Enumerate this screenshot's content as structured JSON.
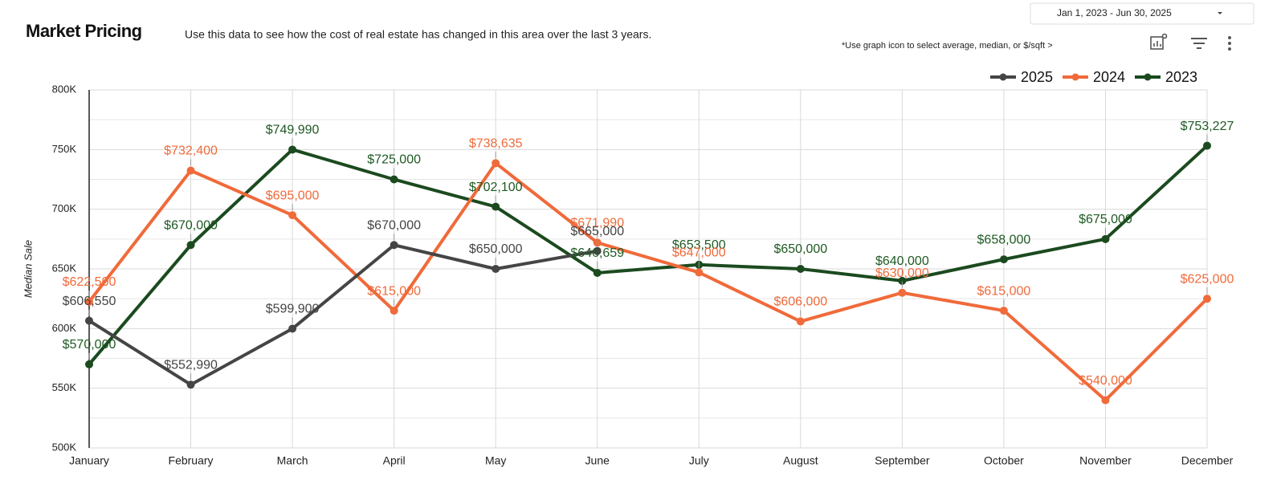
{
  "chart_data": {
    "type": "line",
    "title": "Market Pricing",
    "subtitle": "Use this data to see how the cost of real estate has changed in this area over the last 3 years.",
    "note": "*Use graph icon to  select average, median, or $/sqft >",
    "date_range": "Jan 1, 2023 - Jun 30, 2025",
    "y_label": "Median Sale",
    "categories": [
      "January",
      "February",
      "March",
      "April",
      "May",
      "June",
      "July",
      "August",
      "September",
      "October",
      "November",
      "December"
    ],
    "ylim": [
      500000,
      800000
    ],
    "yticks": [
      {
        "value": 500000,
        "label": "500K"
      },
      {
        "value": 550000,
        "label": "550K"
      },
      {
        "value": 600000,
        "label": "600K"
      },
      {
        "value": 650000,
        "label": "650K"
      },
      {
        "value": 700000,
        "label": "700K"
      },
      {
        "value": 750000,
        "label": "750K"
      },
      {
        "value": 800000,
        "label": "800K"
      }
    ],
    "grid": true,
    "legend": "top-right",
    "series": [
      {
        "name": "2025",
        "color": "#454545",
        "label_color": "#444444",
        "values": [
          606550,
          552990,
          599900,
          670000,
          650000,
          665000,
          null,
          null,
          null,
          null,
          null,
          null
        ],
        "value_labels": [
          "$606,550",
          "$552,990",
          "$599,900",
          "$670,000",
          "$650,000",
          "$665,000",
          null,
          null,
          null,
          null,
          null,
          null
        ]
      },
      {
        "name": "2024",
        "color": "#f06a3a",
        "label_color": "#f06a3a",
        "values": [
          622500,
          732400,
          695000,
          615000,
          738635,
          671990,
          647000,
          606000,
          630000,
          615000,
          540000,
          625000
        ],
        "value_labels": [
          "$622,500",
          "$732,400",
          "$695,000",
          "$615,000",
          "$738,635",
          "$671,990",
          "$647,000",
          "$606,000",
          "$630,000",
          "$615,000",
          "$540,000",
          "$625,000"
        ]
      },
      {
        "name": "2023",
        "color": "#1b4a1f",
        "label_color": "#1e5a22",
        "values": [
          570000,
          670000,
          749990,
          725000,
          702100,
          646659,
          653500,
          650000,
          640000,
          658000,
          675000,
          753227
        ],
        "value_labels": [
          "$570,000",
          "$670,000",
          "$749,990",
          "$725,000",
          "$702,100",
          "$646,659",
          "$653,500",
          "$650,000",
          "$640,000",
          "$658,000",
          "$675,000",
          "$753,227"
        ]
      }
    ]
  }
}
